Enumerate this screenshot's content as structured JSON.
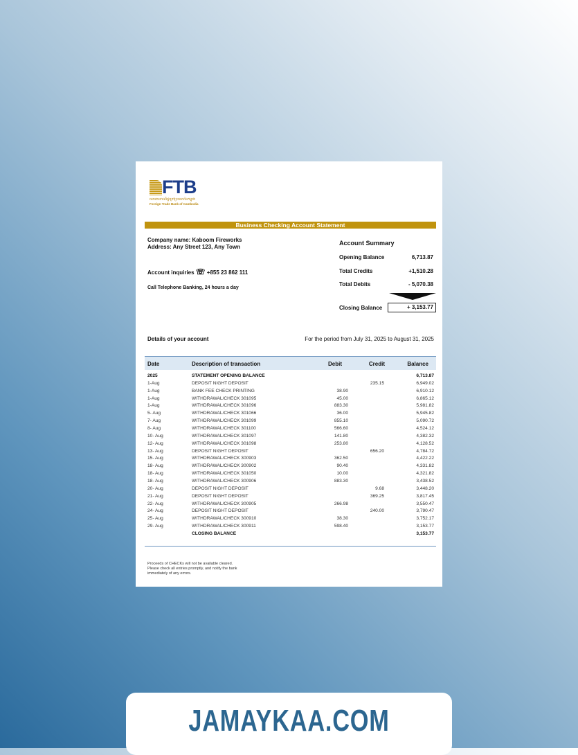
{
  "logo": {
    "name": "FTB",
    "khmer": "ធនាគារពាណិជ្ជក្រៅប្រទេសនៃកម្ពុជា",
    "subtitle": "Foreign Trade Bank of Cambodia"
  },
  "title": "Business Checking Account Statement",
  "company": "Company name: Kaboom Fireworks",
  "address": "Address: Any Street 123, Any Town",
  "inquiries": {
    "label": "Account inquiries",
    "icon": "telephone-icon",
    "phone": "+855 23 862 111"
  },
  "telephone_banking": "Call Telephone Banking, 24 hours a day",
  "summary": {
    "title": "Account Summary",
    "opening_label": "Opening Balance",
    "opening": "6,713.87",
    "credits_label": "Total Credits",
    "credits": "+1,510.28",
    "debits_label": "Total Debits",
    "debits": "- 5,070.38",
    "closing_label": "Closing Balance",
    "closing": "+ 3,153.77"
  },
  "details": "Details of your account",
  "period": "For the period from July 31, 2025 to August 31, 2025",
  "table": {
    "headers": [
      "Date",
      "Description of transaction",
      "Debit",
      "Credit",
      "Balance"
    ],
    "rows": [
      [
        "2025",
        "STATEMENT OPENING BALANCE",
        "",
        "",
        "6,713.87"
      ],
      [
        "1-Aug",
        "DEPOSIT NIGHT DEPOSIT",
        "",
        "235.15",
        "6,949.02"
      ],
      [
        "1-Aug",
        "BANK FEE CHECK PRINTING",
        "38.90",
        "",
        "6,910.12"
      ],
      [
        "1-Aug",
        "WITHDRAWAL/CHECK 301095",
        "45.00",
        "",
        "6,865.12"
      ],
      [
        "1-Aug",
        "WITHDRAWAL/CHECK 301096",
        "883.30",
        "",
        "5,981.82"
      ],
      [
        "5- Aug",
        "WITHDRAWAL/CHECK 301066",
        "36.00",
        "",
        "5,945.82"
      ],
      [
        "7- Aug",
        "WITHDRAWAL/CHECK 301099",
        "855.10",
        "",
        "5,090.72"
      ],
      [
        "8- Aug",
        "WITHDRAWAL/CHECK 301100",
        "566.60",
        "",
        "4,524.12"
      ],
      [
        "10- Aug",
        "WITHDRAWAL/CHECK 301097",
        "141.80",
        "",
        "4,382.32"
      ],
      [
        "12- Aug",
        "WITHDRAWAL/CHECK 301098",
        "253.80",
        "",
        "4,128.52"
      ],
      [
        "13- Aug",
        "DEPOSIT NIGHT DEPOSIT",
        "",
        "656.20",
        "4,784.72"
      ],
      [
        "15- Aug",
        "WITHDRAWAL/CHECK 300903",
        "362.50",
        "",
        "4,422.22"
      ],
      [
        "18- Aug",
        "WITHDRAWAL/CHECK 300902",
        "90.40",
        "",
        "4,331.82"
      ],
      [
        "18- Aug",
        "WITHDRAWAL/CHECK 301050",
        "10.00",
        "",
        "4,321.82"
      ],
      [
        "18- Aug",
        "WITHDRAWAL/CHECK 300906",
        "883.30",
        "",
        "3,438.52"
      ],
      [
        "20- Aug",
        "DEPOSIT NIGHT DEPOSIT",
        "",
        "9.68",
        "3,448.20"
      ],
      [
        "21- Aug",
        "DEPOSIT NIGHT DEPOSIT",
        "",
        "369.25",
        "3,817.45"
      ],
      [
        "22- Aug",
        "WITHDRAWAL/CHECK 300905",
        "266.98",
        "",
        "3,550.47"
      ],
      [
        "24- Aug",
        "DEPOSIT NIGHT DEPOSIT",
        "",
        "240.00",
        "3,790.47"
      ],
      [
        "25- Aug",
        "WITHDRAWAL/CHECK 300910",
        "38.30",
        "",
        "3,752.17"
      ],
      [
        "29- Aug",
        "WITHDRAWAL/CHECK 300911",
        "598.40",
        "",
        "3,153.77"
      ],
      [
        "",
        "CLOSING BALANCE",
        "",
        "",
        "3,153.77"
      ]
    ]
  },
  "note": "Proceeds of CHECKs will not be available cleared. Please check all entries promptly, and notify the bank immediately of any errors.",
  "watermark": "JAMAYKAA.COM",
  "colors": {
    "accent": "#c0930e",
    "brand": "#1d3e8a",
    "table_header": "#dce8f3"
  }
}
